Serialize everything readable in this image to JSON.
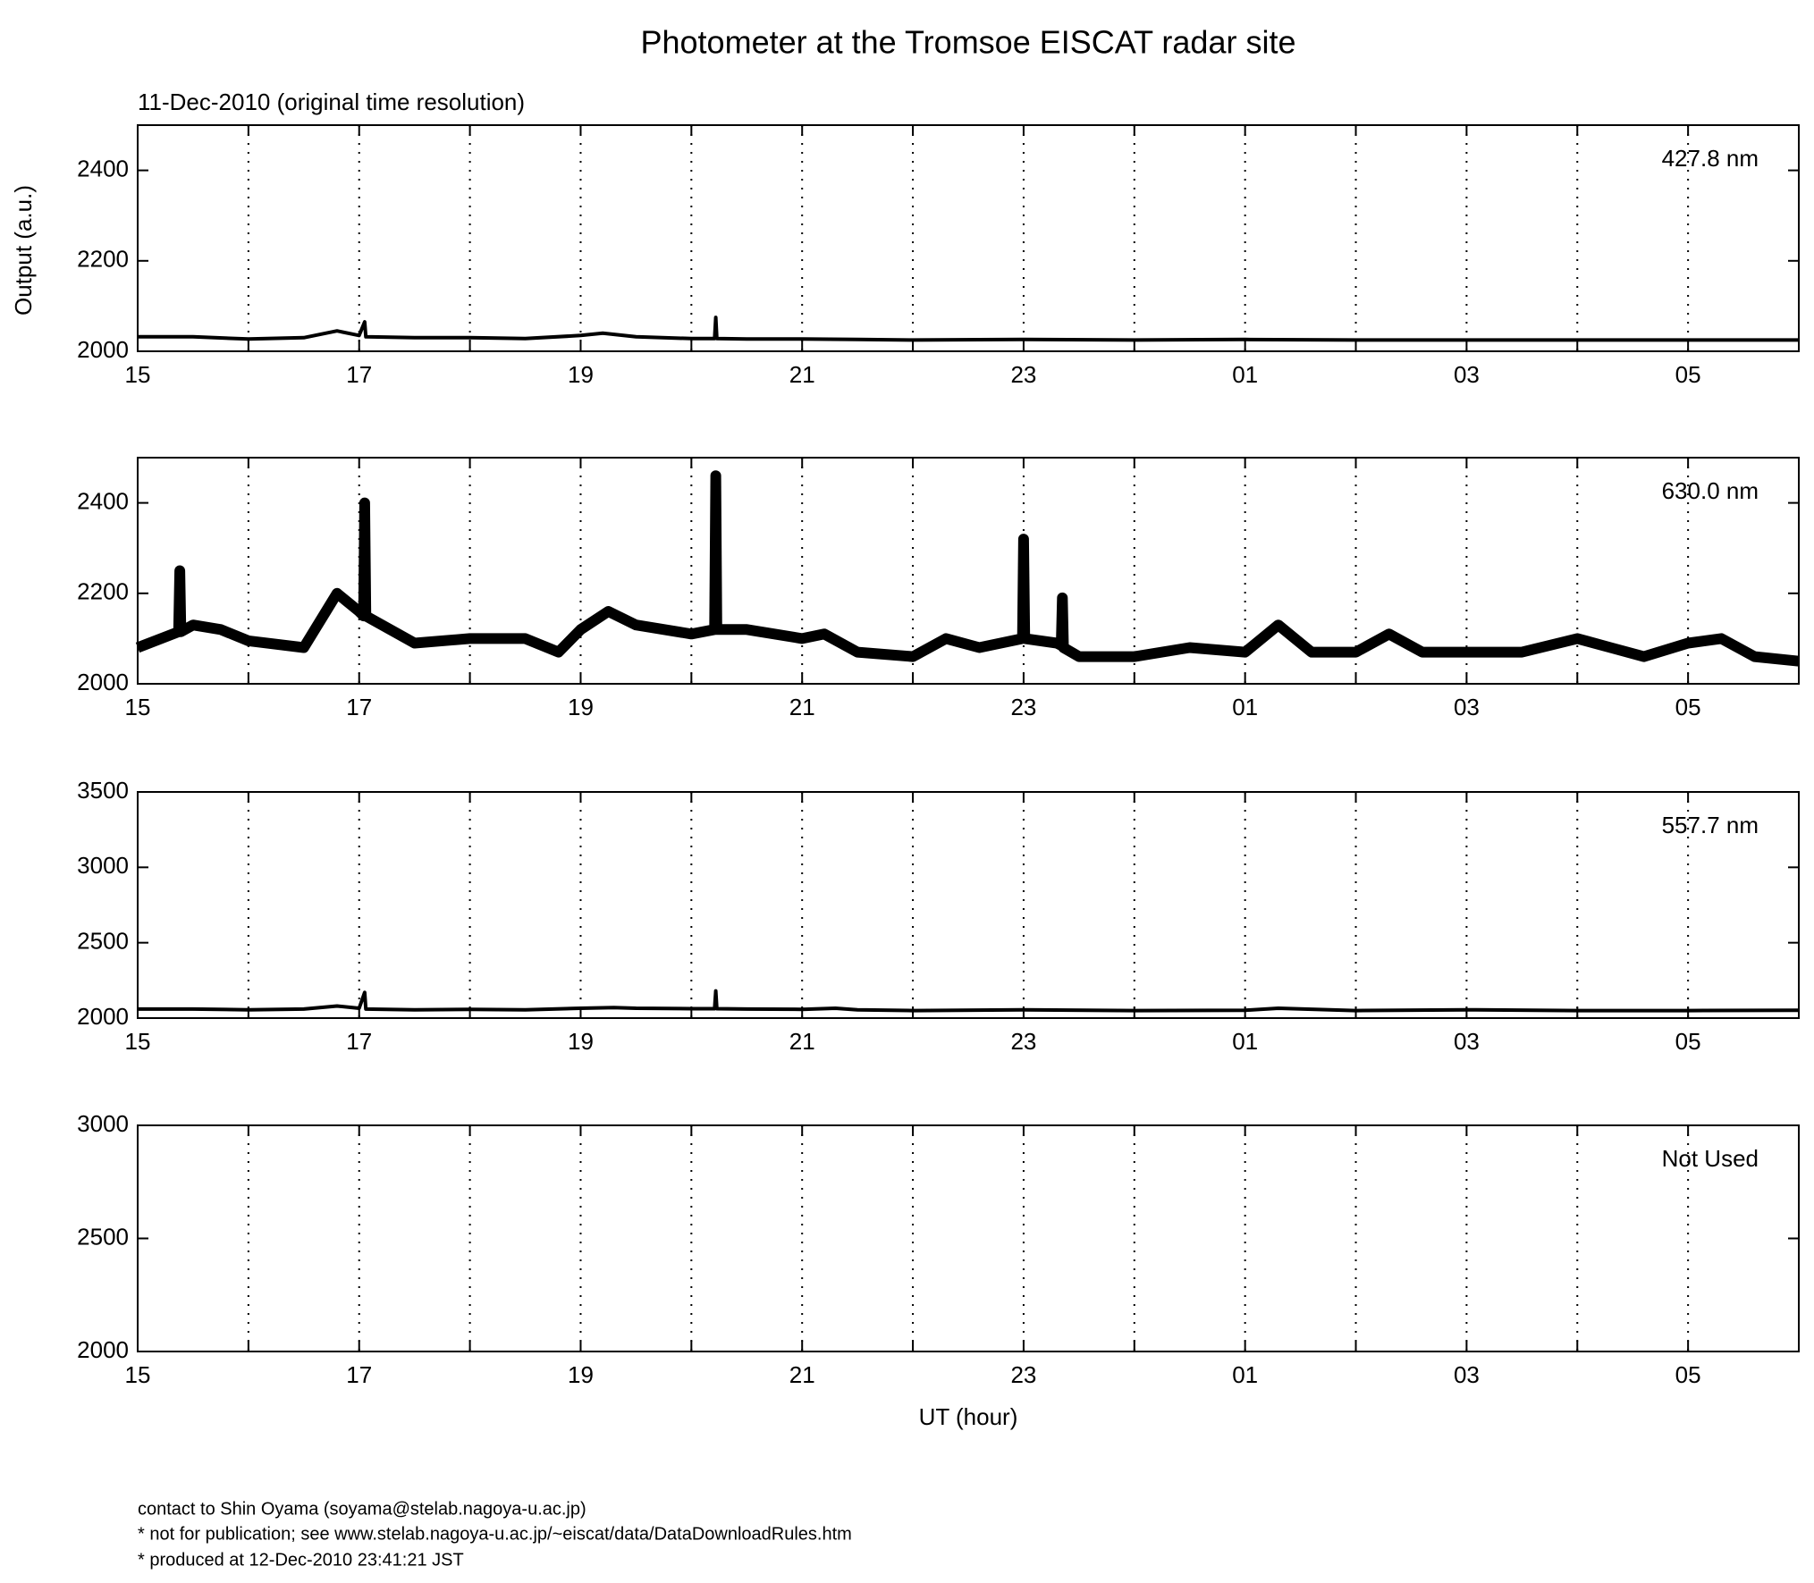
{
  "title": "Photometer at the Tromsoe EISCAT radar site",
  "subtitle": "11-Dec-2010 (original time resolution)",
  "notes": [
    "contact to Shin Oyama (soyama@stelab.nagoya-u.ac.jp)",
    "* not for publication; see www.stelab.nagoya-u.ac.jp/~eiscat/data/DataDownloadRules.htm",
    "* produced at 12-Dec-2010 23:41:21 JST"
  ],
  "chart_data": [
    {
      "type": "line",
      "label": "427.8 nm",
      "ylabel": "Output (a.u.)",
      "color": "#000000",
      "grid": true,
      "xlim": [
        15,
        30
      ],
      "xticks": [
        15,
        17,
        19,
        21,
        23,
        {
          "value": 25,
          "label": "01"
        },
        {
          "value": 27,
          "label": "03"
        },
        {
          "value": 29,
          "label": "05"
        }
      ],
      "xminorticks": [
        16,
        18,
        20,
        22,
        24,
        26,
        28
      ],
      "ylim": [
        2000,
        2500
      ],
      "yticks": [
        2000,
        2200,
        2400
      ],
      "x": [
        15,
        15.5,
        16,
        16.5,
        16.8,
        17,
        17.05,
        17.06,
        17.5,
        18,
        18.5,
        19,
        19.2,
        19.5,
        20,
        20.21,
        20.22,
        20.23,
        20.5,
        21,
        21.5,
        22,
        23,
        24,
        25,
        26,
        27,
        28,
        29,
        30
      ],
      "values": [
        2032,
        2032,
        2027,
        2030,
        2045,
        2035,
        2065,
        2032,
        2030,
        2030,
        2028,
        2035,
        2040,
        2032,
        2028,
        2028,
        2075,
        2028,
        2027,
        2027,
        2026,
        2025,
        2026,
        2025,
        2026,
        2025,
        2025,
        2025,
        2025,
        2025
      ]
    },
    {
      "type": "line",
      "label": "630.0 nm",
      "color": "#000000",
      "grid": true,
      "xlim": [
        15,
        30
      ],
      "xticks": [
        15,
        17,
        19,
        21,
        23,
        {
          "value": 25,
          "label": "01"
        },
        {
          "value": 27,
          "label": "03"
        },
        {
          "value": 29,
          "label": "05"
        }
      ],
      "xminorticks": [
        16,
        18,
        20,
        22,
        24,
        26,
        28
      ],
      "ylim": [
        2000,
        2500
      ],
      "yticks": [
        2000,
        2200,
        2400
      ],
      "x": [
        15,
        15.37,
        15.38,
        15.39,
        15.5,
        15.75,
        16,
        16.5,
        16.8,
        17,
        17.04,
        17.05,
        17.06,
        17.5,
        18,
        18.5,
        18.8,
        19,
        19.25,
        19.5,
        20,
        20.21,
        20.22,
        20.23,
        20.5,
        21,
        21.2,
        21.5,
        22,
        22.3,
        22.6,
        22.99,
        23,
        23.01,
        23.3,
        23.34,
        23.35,
        23.36,
        23.5,
        24,
        24.5,
        25,
        25.3,
        25.6,
        26,
        26.3,
        26.6,
        27,
        27.5,
        28,
        28.3,
        28.6,
        29,
        29.3,
        29.6,
        30
      ],
      "values": [
        2080,
        2115,
        2250,
        2115,
        2130,
        2120,
        2095,
        2080,
        2200,
        2160,
        2150,
        2400,
        2150,
        2090,
        2100,
        2100,
        2070,
        2120,
        2160,
        2130,
        2110,
        2120,
        2460,
        2120,
        2120,
        2100,
        2110,
        2070,
        2060,
        2100,
        2080,
        2100,
        2320,
        2100,
        2090,
        2085,
        2190,
        2080,
        2060,
        2060,
        2080,
        2070,
        2130,
        2070,
        2070,
        2110,
        2070,
        2070,
        2070,
        2100,
        2080,
        2060,
        2090,
        2100,
        2060,
        2050
      ]
    },
    {
      "type": "line",
      "label": "557.7 nm",
      "color": "#000000",
      "grid": true,
      "xlim": [
        15,
        30
      ],
      "xticks": [
        15,
        17,
        19,
        21,
        23,
        {
          "value": 25,
          "label": "01"
        },
        {
          "value": 27,
          "label": "03"
        },
        {
          "value": 29,
          "label": "05"
        }
      ],
      "xminorticks": [
        16,
        18,
        20,
        22,
        24,
        26,
        28
      ],
      "ylim": [
        2000,
        3500
      ],
      "yticks": [
        2000,
        2500,
        3000,
        3500
      ],
      "x": [
        15,
        15.5,
        16,
        16.5,
        16.8,
        17,
        17.05,
        17.06,
        17.5,
        18,
        18.5,
        19,
        19.3,
        19.5,
        20,
        20.21,
        20.22,
        20.23,
        20.5,
        21,
        21.3,
        21.5,
        22,
        23,
        24,
        25,
        25.3,
        26,
        27,
        28,
        29,
        30
      ],
      "values": [
        2060,
        2060,
        2055,
        2060,
        2080,
        2065,
        2170,
        2060,
        2055,
        2058,
        2055,
        2065,
        2070,
        2065,
        2062,
        2062,
        2180,
        2062,
        2060,
        2058,
        2065,
        2055,
        2050,
        2055,
        2050,
        2052,
        2065,
        2050,
        2055,
        2050,
        2050,
        2052
      ]
    },
    {
      "type": "line",
      "label": "Not Used",
      "xlabel": "UT (hour)",
      "color": "#000000",
      "grid": true,
      "xlim": [
        15,
        30
      ],
      "xticks": [
        15,
        17,
        19,
        21,
        23,
        {
          "value": 25,
          "label": "01"
        },
        {
          "value": 27,
          "label": "03"
        },
        {
          "value": 29,
          "label": "05"
        }
      ],
      "xminorticks": [
        16,
        18,
        20,
        22,
        24,
        26,
        28
      ],
      "ylim": [
        2000,
        3000
      ],
      "yticks": [
        2000,
        2500,
        3000
      ]
    }
  ]
}
